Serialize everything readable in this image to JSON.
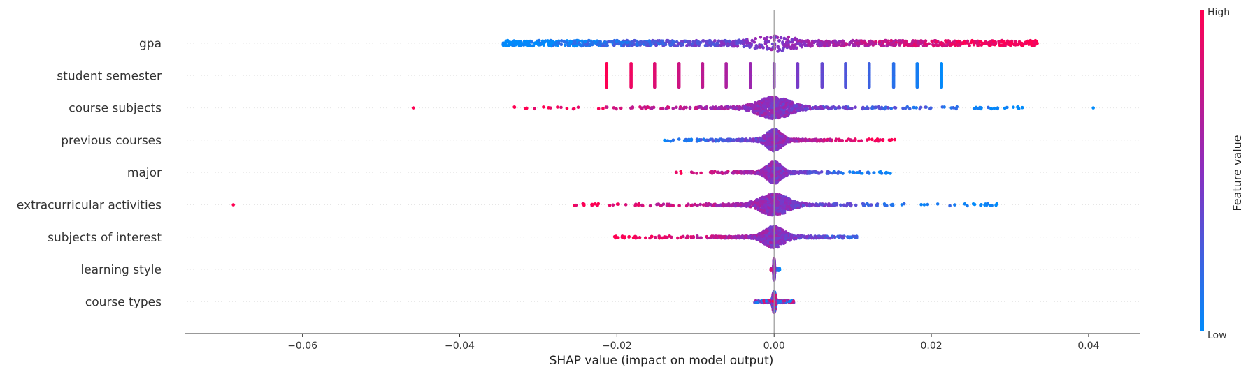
{
  "chart_data": {
    "type": "scatter",
    "subtype": "shap-beeswarm",
    "xlabel": "SHAP value (impact on model output)",
    "xlim": [
      -0.075,
      0.0465
    ],
    "xticks": [
      -0.06,
      -0.04,
      -0.02,
      0.0,
      0.02,
      0.04
    ],
    "xtick_labels": [
      "−0.06",
      "−0.04",
      "−0.02",
      "0.00",
      "0.02",
      "0.04"
    ],
    "zero_line": true,
    "colorbar": {
      "high_label": "High",
      "low_label": "Low",
      "title": "Feature value",
      "color_low": "#008bfb",
      "color_mid": "#8a2ec0",
      "color_high": "#ff0052"
    },
    "features": [
      {
        "name": "gpa",
        "range": [
          -0.0345,
          0.0335
        ],
        "correlation": "positive",
        "discrete": false
      },
      {
        "name": "student semester",
        "discrete_values": [
          -0.0213,
          -0.0182,
          -0.0152,
          -0.0121,
          -0.0091,
          -0.0061,
          -0.003,
          0.0,
          0.003,
          0.0061,
          0.0091,
          0.0121,
          0.0152,
          0.0182,
          0.0213
        ],
        "correlation": "negative",
        "discrete": true
      },
      {
        "name": "course subjects",
        "range": [
          -0.0336,
          0.0316
        ],
        "outliers": [
          -0.0459,
          0.0406
        ],
        "correlation": "negative",
        "discrete": false
      },
      {
        "name": "previous courses",
        "range": [
          -0.0148,
          0.0155
        ],
        "correlation": "positive",
        "discrete": false
      },
      {
        "name": "major",
        "range": [
          -0.0127,
          0.0151
        ],
        "correlation": "negative",
        "discrete": false
      },
      {
        "name": "extracurricular activities",
        "range": [
          -0.026,
          0.029
        ],
        "outliers": [
          -0.0688
        ],
        "correlation": "negative",
        "discrete": false
      },
      {
        "name": "subjects of interest",
        "range": [
          -0.0203,
          0.0105
        ],
        "correlation": "negative",
        "discrete": false
      },
      {
        "name": "learning style",
        "range": [
          -0.0004,
          0.0007
        ],
        "correlation": "negative",
        "discrete": false
      },
      {
        "name": "course types",
        "range": [
          -0.0025,
          0.0025
        ],
        "correlation": "mixed",
        "discrete": false
      }
    ]
  }
}
